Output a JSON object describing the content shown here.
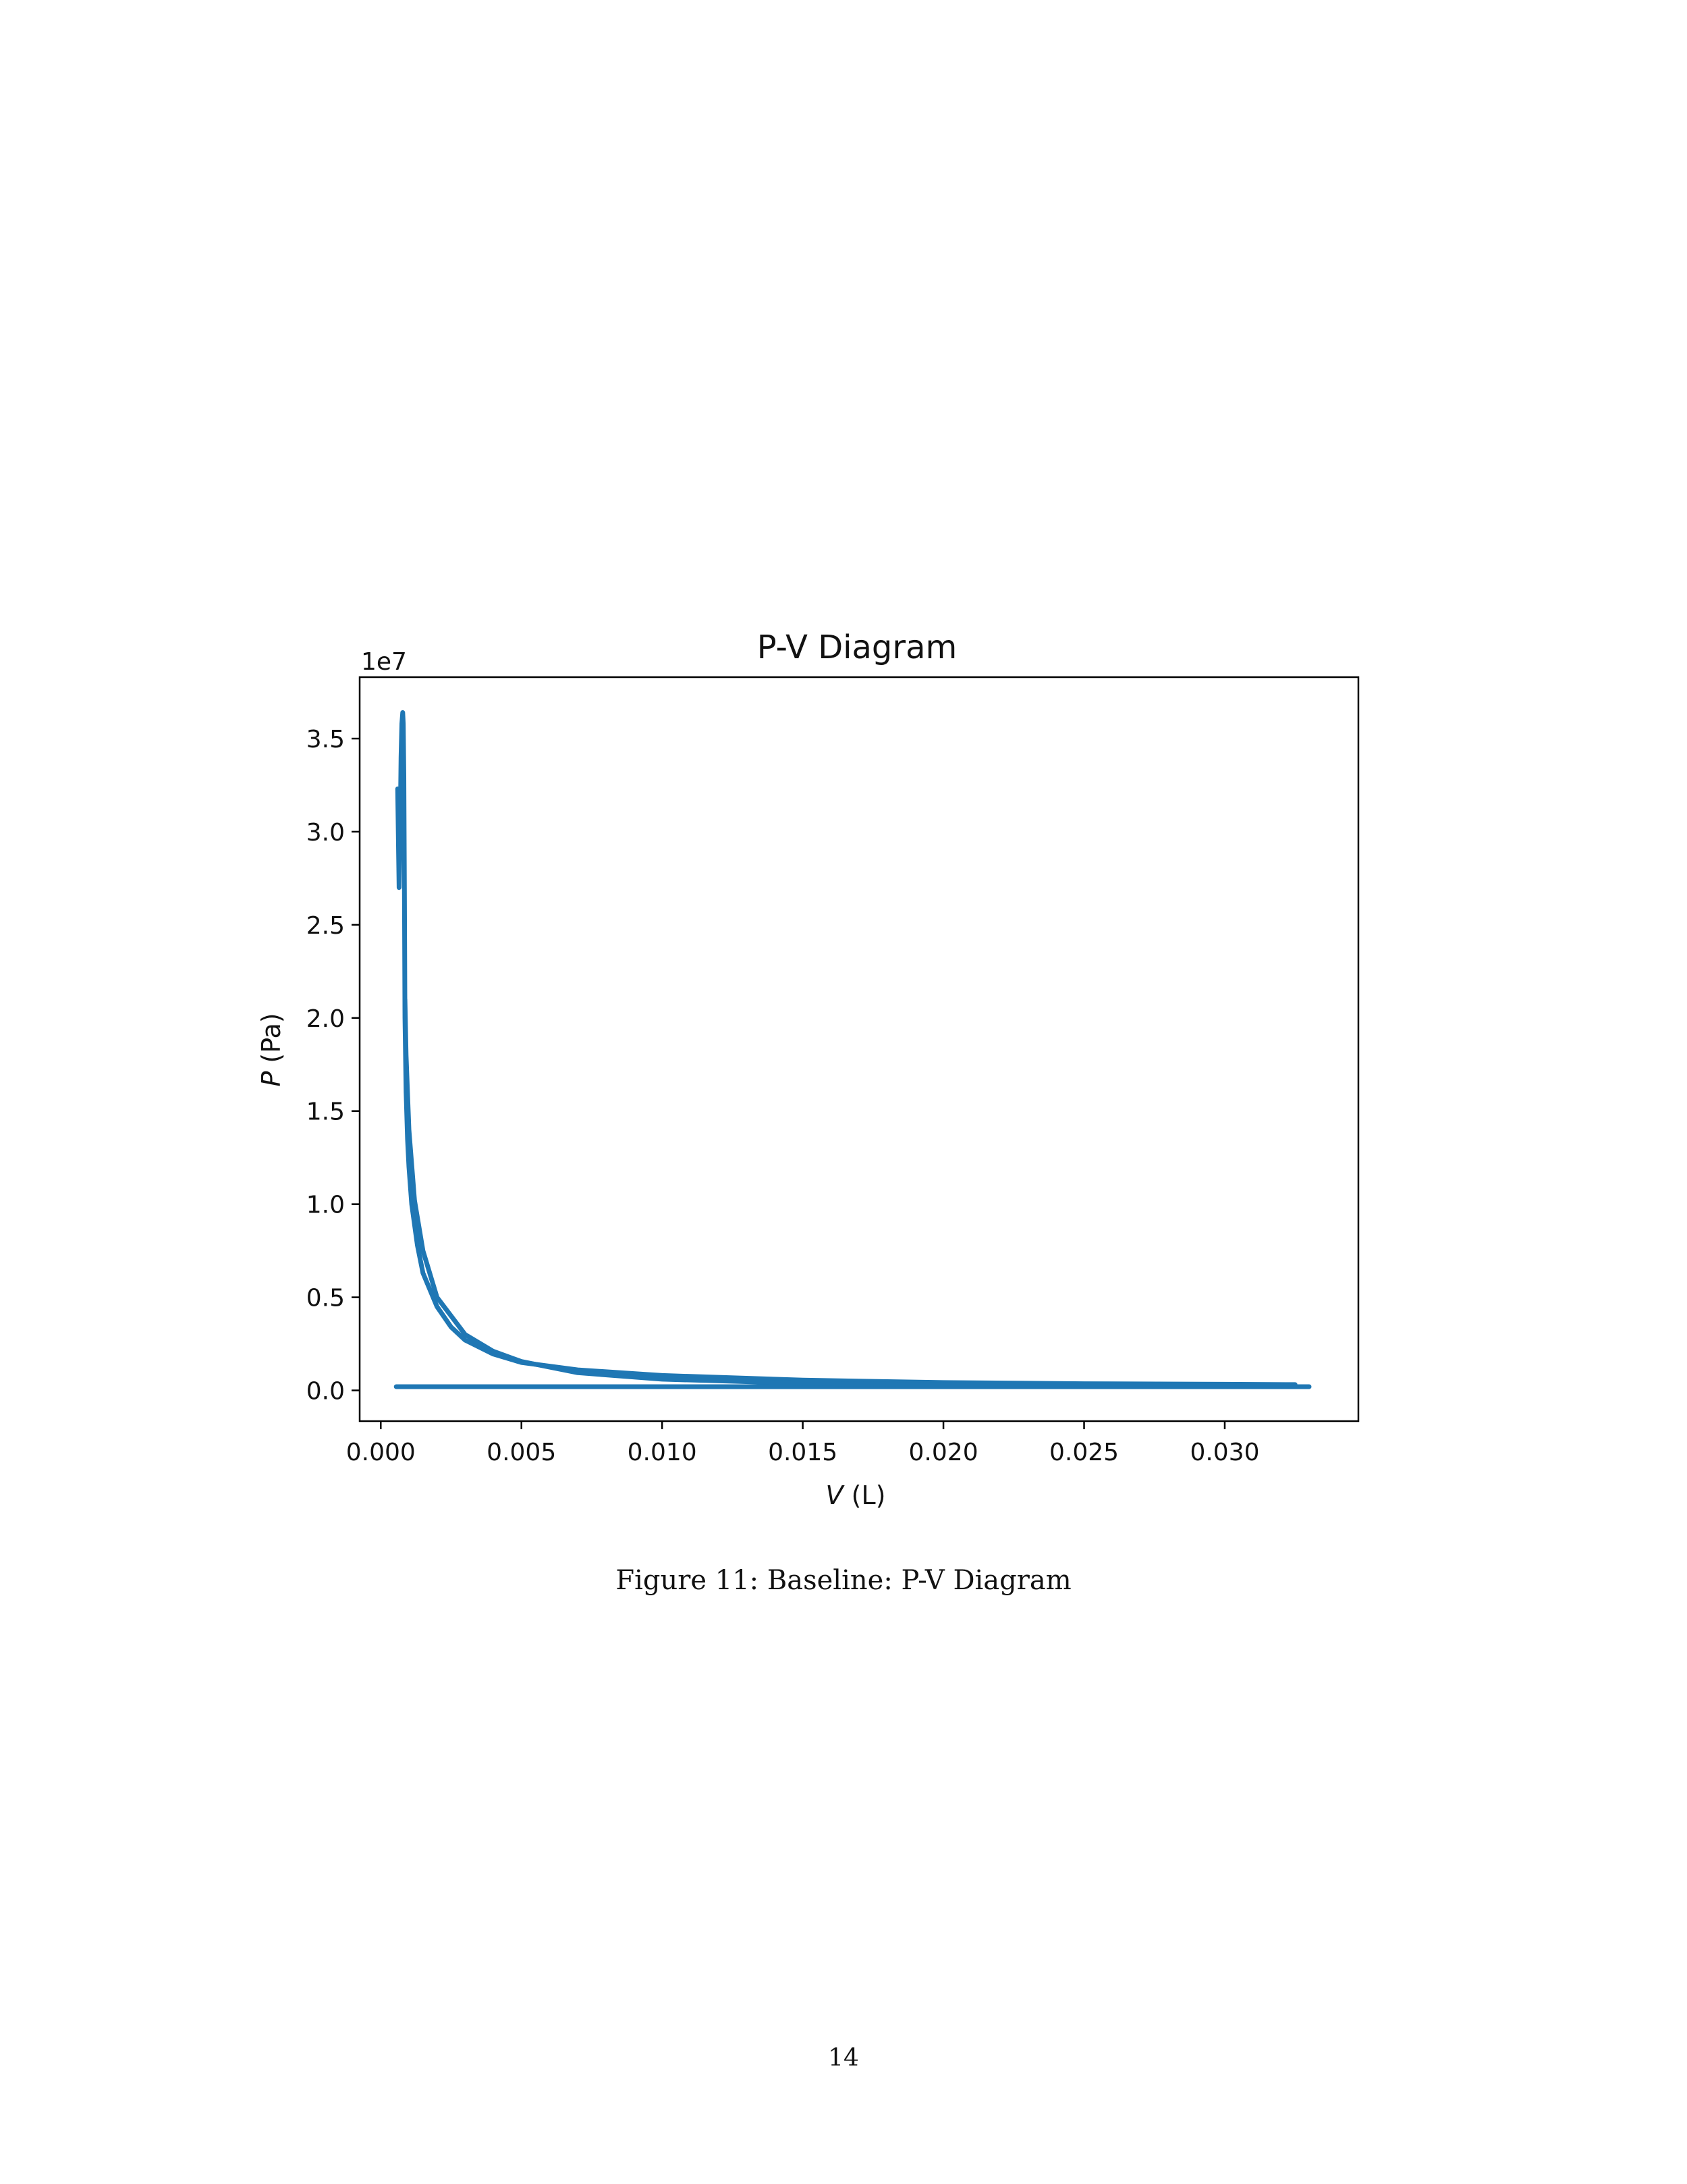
{
  "chart_data": {
    "type": "line",
    "title": "P-V Diagram",
    "xlabel_var": "V",
    "xlabel_unit": " (L)",
    "ylabel_var": "P",
    "ylabel_unit": " (Pa)",
    "y_offset_text": "1e7",
    "xlim": [
      -0.00075,
      0.03475
    ],
    "ylim": [
      -1650000,
      38300000
    ],
    "x_ticks": [
      0.0,
      0.005,
      0.01,
      0.015,
      0.02,
      0.025,
      0.03
    ],
    "x_tick_labels": [
      "0.000",
      "0.005",
      "0.010",
      "0.015",
      "0.020",
      "0.025",
      "0.030"
    ],
    "y_ticks": [
      0,
      5000000,
      10000000,
      15000000,
      20000000,
      25000000,
      30000000,
      35000000
    ],
    "y_tick_labels": [
      "0.0",
      "0.5",
      "1.0",
      "1.5",
      "2.0",
      "2.5",
      "3.0",
      "3.5"
    ],
    "grid": false,
    "line_color": "#1f77b4",
    "series": [
      {
        "segments": [
          {
            "x": [
              0.00055,
              0.033
            ],
            "y": [
              200000,
              200000
            ]
          },
          {
            "x": [
              0.0006,
              0.00065,
              0.0007,
              0.00072,
              0.00075,
              0.00078,
              0.0008,
              0.00082,
              0.00084,
              0.00086,
              0.0009,
              0.00095,
              0.001,
              0.0011,
              0.0013,
              0.0015,
              0.002,
              0.0025,
              0.003,
              0.004,
              0.005,
              0.007,
              0.01,
              0.015,
              0.02,
              0.025,
              0.03,
              0.0325
            ],
            "y": [
              32300000,
              27000000,
              31500000,
              34000000,
              35800000,
              36400000,
              35800000,
              33000000,
              27000000,
              20000000,
              16000000,
              13500000,
              12000000,
              10000000,
              7800000,
              6300000,
              4500000,
              3400000,
              2700000,
              1950000,
              1500000,
              1100000,
              800000,
              550000,
              420000,
              360000,
              330000,
              310000
            ]
          },
          {
            "x": [
              0.00086,
              0.0009,
              0.001,
              0.0012,
              0.0015,
              0.002,
              0.003,
              0.004,
              0.005,
              0.007,
              0.01,
              0.015,
              0.02,
              0.025,
              0.03,
              0.0325
            ],
            "y": [
              21000000,
              18000000,
              14000000,
              10200000,
              7500000,
              5000000,
              3000000,
              2100000,
              1550000,
              950000,
              600000,
              380000,
              300000,
              260000,
              230000,
              220000
            ]
          }
        ]
      }
    ]
  },
  "caption": "Figure 11: Baseline: P-V Diagram",
  "page_number": "14"
}
